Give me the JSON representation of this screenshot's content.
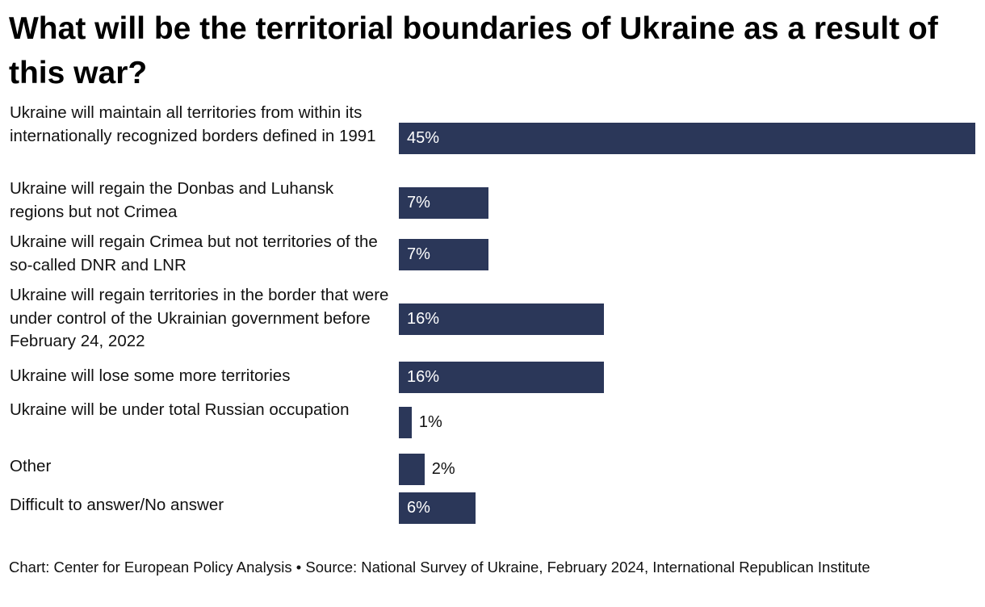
{
  "chart_data": {
    "type": "bar",
    "orientation": "horizontal",
    "title": "What will be the territorial boundaries of Ukraine as a result of this war?",
    "categories": [
      "Ukraine will maintain all territories from within its internationally recognized borders defined in 1991",
      "Ukraine will regain the Donbas and Luhansk regions but not Crimea",
      "Ukraine will regain Crimea but not territories of the so-called DNR and LNR",
      "Ukraine will regain territories in the border that were under control of the Ukrainian government before February 24, 2022",
      "Ukraine will lose some more territories",
      "Ukraine will be under total Russian occupation",
      "Other",
      "Difficult to answer/No answer"
    ],
    "values": [
      45,
      7,
      7,
      16,
      16,
      1,
      2,
      6
    ],
    "value_labels": [
      "45%",
      "7%",
      "7%",
      "16%",
      "16%",
      "1%",
      "2%",
      "6%"
    ],
    "unit": "%",
    "xlim": [
      0,
      45
    ],
    "xlabel": "",
    "ylabel": "",
    "grid": false,
    "bar_color": "#2b3759"
  },
  "footer": {
    "text": "Chart: Center for European Policy Analysis • Source: National Survey of Ukraine, February 2024, International Republican Institute"
  }
}
